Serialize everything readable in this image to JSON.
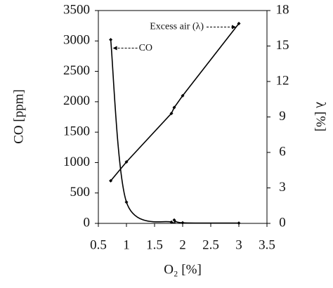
{
  "chart_data": {
    "type": "line",
    "x_label": "O₂ [%]",
    "y_label": "CO [ppm]",
    "y2_label": "λ [%]",
    "xlim": [
      0.5,
      3.5
    ],
    "xticks": [
      0.5,
      1,
      1.5,
      2,
      2.5,
      3,
      3.5
    ],
    "ylim": [
      0,
      3500
    ],
    "yticks": [
      0,
      500,
      1000,
      1500,
      2000,
      2500,
      3000,
      3500
    ],
    "y2lim": [
      0,
      18
    ],
    "y2ticks": [
      0,
      3,
      6,
      9,
      12,
      15,
      18
    ],
    "series": [
      {
        "name": "CO",
        "color": "#000000",
        "x": [
          0.72,
          1.0,
          1.8,
          1.85,
          2.0,
          3.0
        ],
        "values": [
          3020,
          350,
          20,
          55,
          10,
          5
        ]
      },
      {
        "name": "Excess air (λ)",
        "color": "#000000",
        "axis": "y2",
        "x": [
          0.72,
          1.0,
          1.8,
          1.85,
          2.0,
          3.0
        ],
        "values": [
          3.6,
          5.2,
          9.3,
          9.8,
          10.8,
          16.9
        ]
      }
    ]
  }
}
